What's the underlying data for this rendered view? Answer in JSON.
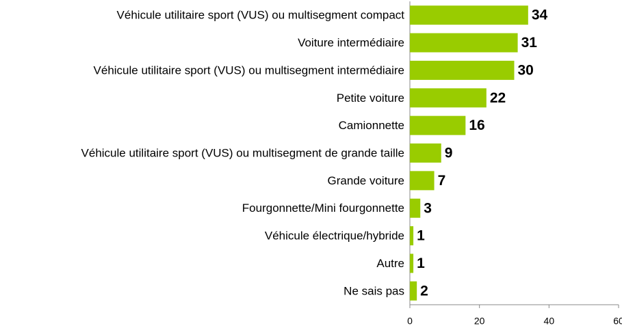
{
  "chart_data": {
    "type": "barh",
    "categories": [
      "Véhicule utilitaire sport (VUS) ou multisegment compact",
      "Voiture intermédiaire",
      "Véhicule utilitaire sport (VUS) ou multisegment intermédiaire",
      "Petite voiture",
      "Camionnette",
      "Véhicule utilitaire sport (VUS) ou multisegment de grande taille",
      "Grande voiture",
      "Fourgonnette/Mini fourgonnette",
      "Véhicule électrique/hybride",
      "Autre",
      "Ne sais pas"
    ],
    "values": [
      34,
      31,
      30,
      22,
      16,
      9,
      7,
      3,
      1,
      1,
      2
    ],
    "color": "#99cc00",
    "xlim": [
      0,
      60
    ],
    "xticks": [
      0,
      20,
      40,
      60
    ],
    "grid": false
  }
}
